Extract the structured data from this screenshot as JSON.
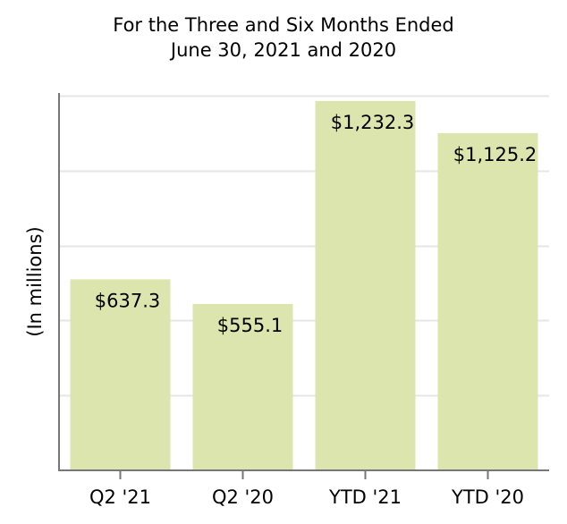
{
  "chart_data": {
    "type": "bar",
    "title_line1": "For the Three and Six Months Ended",
    "title_line2": "June 30, 2021 and 2020",
    "xlabel": "",
    "ylabel": "(In millions)",
    "categories": [
      "Q2 '21",
      "Q2 '20",
      "YTD '21",
      "YTD '20"
    ],
    "values": [
      637.3,
      555.1,
      1232.3,
      1125.2
    ],
    "data_labels": [
      "$637.3",
      "$555.1",
      "$1,232.3",
      "$1,125.2"
    ],
    "ylim": [
      0,
      1250
    ],
    "grid": true,
    "bar_color": "#dce5ad",
    "grid_color": "#e6e6e6",
    "axis_color": "#777777"
  }
}
